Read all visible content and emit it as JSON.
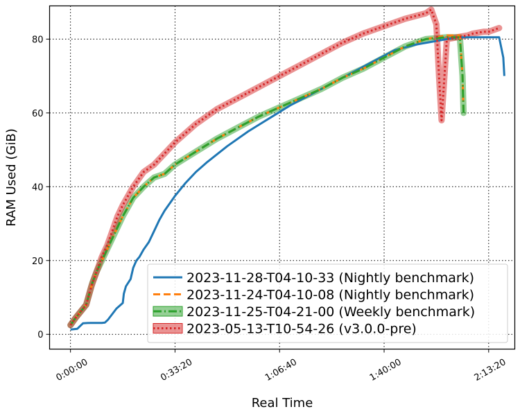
{
  "chart_data": {
    "type": "line",
    "xlabel": "Real Time",
    "ylabel": "RAM Used (GiB)",
    "x_unit": "elapsed time (h:mm:ss)",
    "xlim": [
      "-0:06:40",
      "2:21:40"
    ],
    "ylim": [
      -4,
      89
    ],
    "x_ticks": [
      "0:00:00",
      "0:33:20",
      "1:06:40",
      "1:40:00",
      "2:13:20"
    ],
    "x_tick_seconds": [
      0,
      2000,
      4000,
      6000,
      8000
    ],
    "y_ticks": [
      "0",
      "20",
      "40",
      "60",
      "80"
    ],
    "y_tick_values": [
      0,
      20,
      40,
      60,
      80
    ],
    "grid": true,
    "legend_position": "lower-right",
    "series": [
      {
        "name": "2023-11-28-T04-10-33 (Nightly benchmark)",
        "color": "#1f77b4",
        "style": "solid",
        "band": false,
        "x": [
          "0:00:00",
          "0:02:10",
          "0:04:00",
          "0:06:20",
          "0:08:20",
          "0:10:00",
          "0:11:00",
          "0:12:00",
          "0:13:20",
          "0:14:40",
          "0:16:40",
          "0:17:00",
          "0:17:40",
          "0:19:10",
          "0:20:00",
          "0:21:00",
          "0:22:00",
          "0:23:20",
          "0:25:00",
          "0:26:40",
          "0:28:20",
          "0:30:00",
          "0:33:20",
          "0:36:40",
          "0:40:00",
          "0:43:20",
          "0:50:00",
          "0:56:40",
          "1:03:20",
          "1:10:00",
          "1:16:40",
          "1:23:20",
          "1:30:00",
          "1:36:40",
          "1:43:20",
          "1:50:00",
          "1:56:40",
          "2:03:20",
          "2:06:40",
          "2:10:00",
          "2:08:20",
          "2:11:40",
          "2:13:20",
          "2:16:40",
          "2:18:00",
          "2:18:20"
        ],
        "y": [
          1.3,
          1.5,
          3,
          3.1,
          3.1,
          3.1,
          3.2,
          4,
          5.5,
          7,
          8.5,
          11,
          13,
          15,
          18,
          20,
          21,
          23,
          25,
          28,
          31,
          33.5,
          37.5,
          41,
          44,
          46.5,
          51,
          55,
          58.5,
          62,
          65,
          68,
          71,
          74,
          77,
          78.5,
          79.5,
          80.5,
          80.5,
          80.5,
          80.5,
          80.5,
          80.5,
          80.5,
          75,
          70
        ]
      },
      {
        "name": "2023-11-24-T04-10-08 (Nightly benchmark)",
        "color": "#ff7f0e",
        "style": "dashed",
        "band": false,
        "x": [
          "0:00:00",
          "0:01:40",
          "0:05:00",
          "0:07:00",
          "0:08:20",
          "0:10:00",
          "0:11:40",
          "0:13:20",
          "0:15:00",
          "0:16:40",
          "0:20:00",
          "0:23:20",
          "0:26:40",
          "0:30:00",
          "0:33:20",
          "0:40:00",
          "0:46:40",
          "0:53:20",
          "1:00:00",
          "1:06:40",
          "1:13:20",
          "1:20:00",
          "1:26:40",
          "1:33:20",
          "1:40:00",
          "1:46:40",
          "1:53:20",
          "2:00:00",
          "2:04:10",
          "2:05:00",
          "2:05:20"
        ],
        "y": [
          2.5,
          4.5,
          8,
          14,
          17,
          20,
          23,
          26,
          29,
          32,
          37,
          40,
          42.5,
          43.5,
          46,
          49.5,
          53,
          56,
          59,
          61.5,
          64,
          66.5,
          69.5,
          72,
          75,
          78,
          80,
          81,
          81,
          70,
          60
        ]
      },
      {
        "name": "2023-11-25-T04-21-00 (Weekly benchmark)",
        "color": "#2ca02c",
        "style": "dashdot",
        "band": true,
        "x": [
          "0:00:00",
          "0:01:40",
          "0:05:00",
          "0:07:00",
          "0:08:20",
          "0:10:00",
          "0:11:40",
          "0:13:20",
          "0:15:00",
          "0:16:40",
          "0:20:00",
          "0:23:20",
          "0:26:40",
          "0:30:00",
          "0:33:20",
          "0:40:00",
          "0:46:40",
          "0:53:20",
          "1:00:00",
          "1:06:40",
          "1:13:20",
          "1:20:00",
          "1:26:40",
          "1:33:20",
          "1:40:00",
          "1:46:40",
          "1:53:20",
          "2:00:00",
          "2:04:10",
          "2:05:00",
          "2:05:20"
        ],
        "y": [
          2.5,
          4.5,
          8,
          14,
          17,
          20,
          23,
          26,
          29,
          32,
          37,
          40,
          42.5,
          43.5,
          46,
          49.5,
          53,
          56,
          59,
          61.5,
          64,
          66.5,
          69.5,
          72,
          75,
          78,
          80,
          80.5,
          80.5,
          70,
          60
        ]
      },
      {
        "name": "2023-05-13-T10-54-26 (v3.0.0-pre)",
        "color": "#d62728",
        "style": "dotted",
        "band": true,
        "x": [
          "0:00:00",
          "0:01:40",
          "0:05:00",
          "0:06:40",
          "0:08:20",
          "0:10:00",
          "0:11:40",
          "0:13:20",
          "0:15:00",
          "0:16:40",
          "0:20:00",
          "0:23:20",
          "0:26:40",
          "0:30:00",
          "0:33:20",
          "0:40:00",
          "0:46:40",
          "0:53:20",
          "1:00:00",
          "1:06:40",
          "1:13:20",
          "1:20:00",
          "1:26:40",
          "1:33:20",
          "1:40:00",
          "1:46:40",
          "1:53:20",
          "1:55:00",
          "1:56:40",
          "1:57:30",
          "1:58:20",
          "2:00:00",
          "2:03:20",
          "2:06:40",
          "2:08:20",
          "2:11:40",
          "2:13:20",
          "2:16:40"
        ],
        "y": [
          2.5,
          4.5,
          8,
          13,
          17,
          21,
          24,
          28,
          32,
          35,
          40,
          44,
          46,
          49,
          52,
          57,
          61,
          64,
          67,
          70,
          73,
          76,
          79,
          81.5,
          83.5,
          85.5,
          87,
          88,
          84,
          70,
          58,
          80,
          80.5,
          81,
          81.5,
          82,
          82,
          83
        ]
      }
    ]
  }
}
